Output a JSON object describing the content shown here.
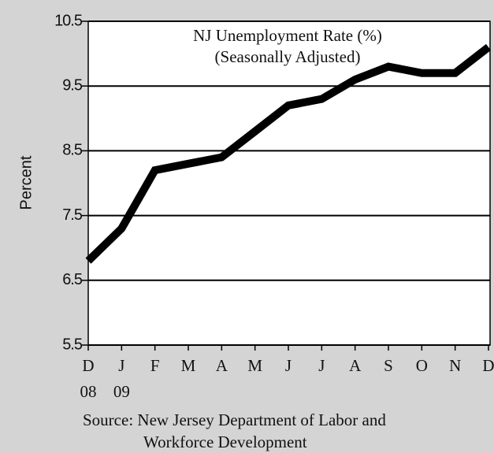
{
  "chart_data": {
    "type": "line",
    "title": "NJ Unemployment Rate (%)",
    "subtitle": "(Seasonally Adjusted)",
    "y_label": "Percent",
    "categories": [
      "D",
      "J",
      "F",
      "M",
      "A",
      "M",
      "J",
      "J",
      "A",
      "S",
      "O",
      "N",
      "D"
    ],
    "x_year_labels": [
      "08",
      "09",
      null,
      null,
      null,
      null,
      null,
      null,
      null,
      null,
      null,
      null,
      null
    ],
    "values": [
      6.8,
      7.3,
      8.2,
      8.3,
      8.4,
      8.8,
      9.2,
      9.3,
      9.6,
      9.8,
      9.7,
      9.7,
      10.1
    ],
    "color": "#000000",
    "ylim": [
      5.5,
      10.5
    ],
    "yticks": [
      5.5,
      6.5,
      7.5,
      8.5,
      9.5,
      10.5
    ],
    "grid": true,
    "source": [
      "Source: New Jersey Department of Labor and",
      "Workforce Development"
    ]
  }
}
